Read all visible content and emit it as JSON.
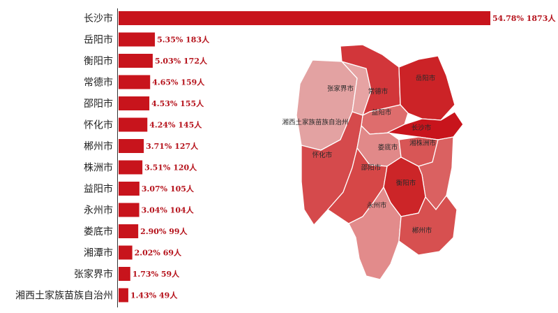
{
  "chart_data": [
    {
      "type": "bar",
      "orientation": "horizontal",
      "categories": [
        "长沙市",
        "岳阳市",
        "衡阳市",
        "常德市",
        "邵阳市",
        "怀化市",
        "郴州市",
        "株洲市",
        "益阳市",
        "永州市",
        "娄底市",
        "湘潭市",
        "张家界市",
        "湘西土家族苗族自治州"
      ],
      "values": [
        1873,
        183,
        172,
        159,
        155,
        145,
        127,
        120,
        105,
        104,
        99,
        69,
        59,
        49
      ],
      "percents": [
        54.78,
        5.35,
        5.03,
        4.65,
        4.53,
        4.24,
        3.71,
        3.51,
        3.07,
        3.04,
        2.9,
        2.02,
        1.73,
        1.43
      ],
      "value_labels": [
        "54.78% 1873人",
        "5.35% 183人",
        "5.03% 172人",
        "4.65% 159人",
        "4.53% 155人",
        "4.24% 145人",
        "3.71% 127人",
        "3.51% 120人",
        "3.07% 105人",
        "3.04% 104人",
        "2.90% 99人",
        "2.02% 69人",
        "1.73% 59人",
        "1.43% 49人"
      ],
      "bar_color": "#c8141c",
      "title": "",
      "xlabel": "",
      "ylabel": ""
    },
    {
      "type": "heatmap",
      "kind": "choropleth",
      "regions": [
        {
          "name": "长沙市",
          "shade": "#c8141c"
        },
        {
          "name": "岳阳市",
          "shade": "#cc2327"
        },
        {
          "name": "常德市",
          "shade": "#d2363a"
        },
        {
          "name": "张家界市",
          "shade": "#e6a3a3"
        },
        {
          "name": "湘西土家族苗族自治州",
          "shade": "#e3a2a2"
        },
        {
          "name": "益阳市",
          "shade": "#de6d6d"
        },
        {
          "name": "怀化市",
          "shade": "#d54a4c"
        },
        {
          "name": "娄底市",
          "shade": "#e18989"
        },
        {
          "name": "湘潭市",
          "shade": "#d85656"
        },
        {
          "name": "株洲市",
          "shade": "#da6161"
        },
        {
          "name": "邵阳市",
          "shade": "#d64747"
        },
        {
          "name": "衡阳市",
          "shade": "#cc2528"
        },
        {
          "name": "永州市",
          "shade": "#e28b8b"
        },
        {
          "name": "郴州市",
          "shade": "#d75050"
        }
      ]
    }
  ]
}
